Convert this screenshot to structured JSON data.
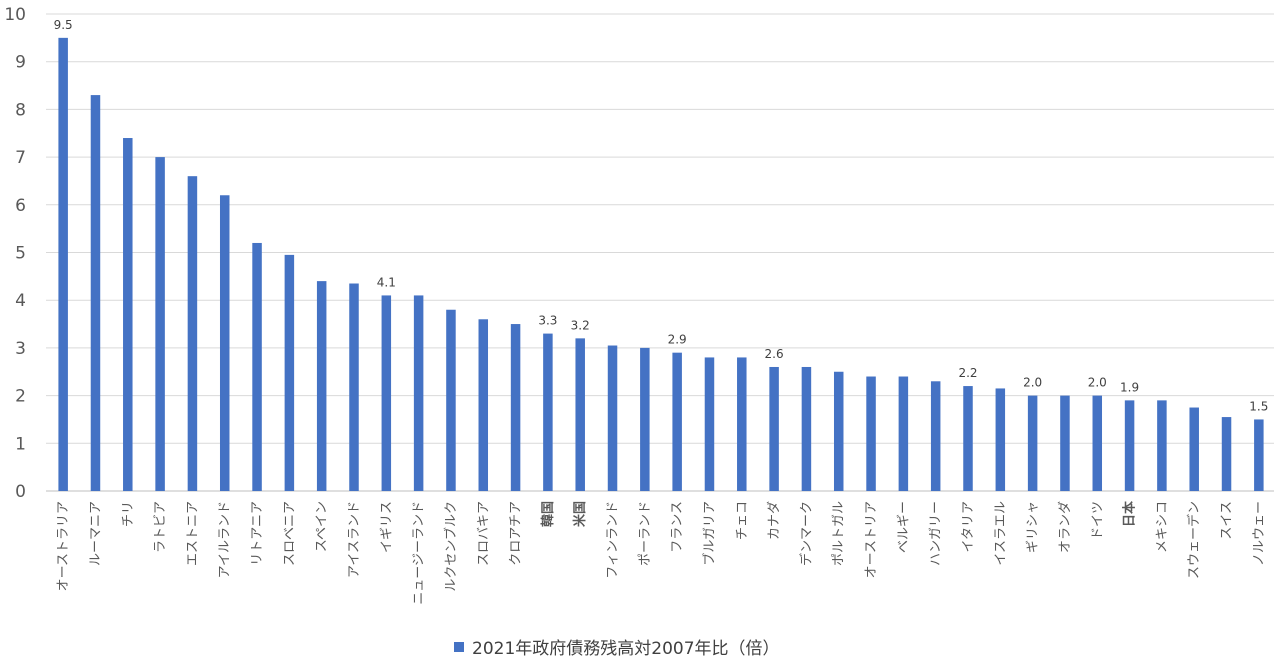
{
  "chart_data": {
    "type": "bar",
    "title": "",
    "xlabel": "",
    "ylabel": "",
    "ylim": [
      0,
      10
    ],
    "yticks": [
      0,
      1,
      2,
      3,
      4,
      5,
      6,
      7,
      8,
      9,
      10
    ],
    "grid": true,
    "legend_position": "bottom",
    "bar_color": "#4472c4",
    "categories": [
      "オーストラリア",
      "ルーマニア",
      "チリ",
      "ラトビア",
      "エストニア",
      "アイルランド",
      "リトアニア",
      "スロベニア",
      "スペイン",
      "アイスランド",
      "イギリス",
      "ニュージーランド",
      "ルクセンブルク",
      "スロバキア",
      "クロアチア",
      "韓国",
      "米国",
      "フィンランド",
      "ポーランド",
      "フランス",
      "ブルガリア",
      "チェコ",
      "カナダ",
      "デンマーク",
      "ポルトガル",
      "オーストリア",
      "ベルギー",
      "ハンガリー",
      "イタリア",
      "イスラエル",
      "ギリシャ",
      "オランダ",
      "ドイツ",
      "日本",
      "メキシコ",
      "スウェーデン",
      "スイス",
      "ノルウェー"
    ],
    "bold_categories": [
      "韓国",
      "米国",
      "日本"
    ],
    "series": [
      {
        "name": "2021年政府債務残高対2007年比（倍）",
        "values": [
          9.5,
          8.3,
          7.4,
          7.0,
          6.6,
          6.2,
          5.2,
          4.95,
          4.4,
          4.35,
          4.1,
          4.1,
          3.8,
          3.6,
          3.5,
          3.3,
          3.2,
          3.05,
          3.0,
          2.9,
          2.8,
          2.8,
          2.6,
          2.6,
          2.5,
          2.4,
          2.4,
          2.3,
          2.2,
          2.15,
          2.0,
          2.0,
          2.0,
          1.9,
          1.9,
          1.75,
          1.55,
          1.5
        ]
      }
    ],
    "data_labels": [
      {
        "category": "オーストラリア",
        "text": "9.5"
      },
      {
        "category": "イギリス",
        "text": "4.1"
      },
      {
        "category": "韓国",
        "text": "3.3"
      },
      {
        "category": "米国",
        "text": "3.2"
      },
      {
        "category": "フランス",
        "text": "2.9"
      },
      {
        "category": "カナダ",
        "text": "2.6"
      },
      {
        "category": "イタリア",
        "text": "2.2"
      },
      {
        "category": "ギリシャ",
        "text": "2.0"
      },
      {
        "category": "ドイツ",
        "text": "2.0"
      },
      {
        "category": "日本",
        "text": "1.9"
      },
      {
        "category": "ノルウェー",
        "text": "1.5"
      }
    ]
  }
}
